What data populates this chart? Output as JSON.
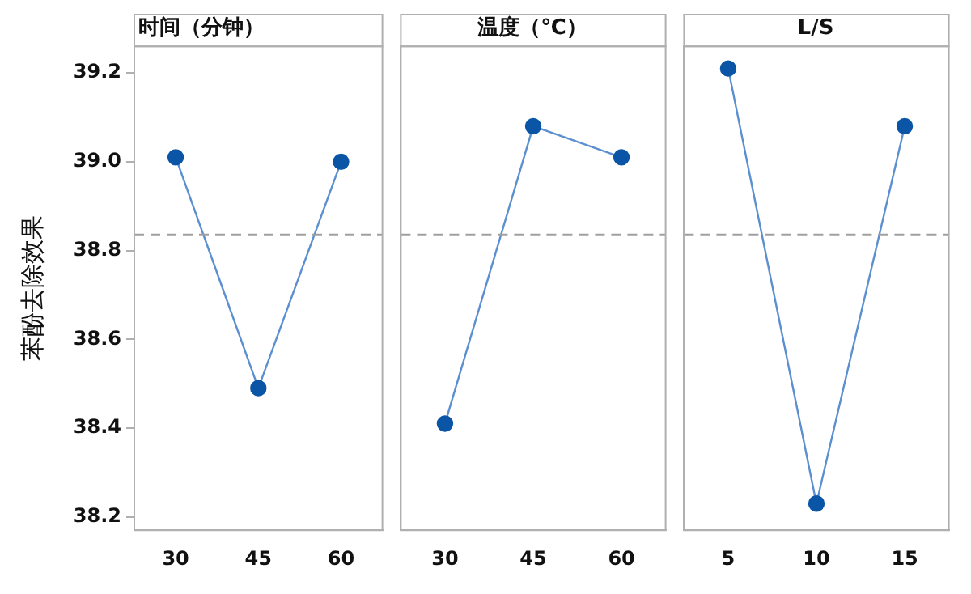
{
  "chart_data": [
    {
      "type": "line",
      "title": "时间（分钟）",
      "ylabel": "苯酚去除效果",
      "categories": [
        "30",
        "45",
        "60"
      ],
      "series": [
        {
          "color": "#0b55a6",
          "values": [
            39.01,
            38.49,
            39.0
          ]
        }
      ],
      "ylim": [
        38.17,
        39.26
      ],
      "yticks": [
        38.2,
        38.4,
        38.6,
        38.8,
        {
          "value": 39.0,
          "label": "39.0"
        },
        39.2
      ],
      "marker": "circle",
      "line_style": "solid",
      "grid": false,
      "legend": false,
      "ref_lines": [
        {
          "axis": "y",
          "value": 38.835,
          "color": "#a0a0a0",
          "line_style": "dashed"
        }
      ]
    },
    {
      "type": "line",
      "title": "温度（℃）",
      "categories": [
        "30",
        "45",
        "60"
      ],
      "series": [
        {
          "color": "#0b55a6",
          "values": [
            38.41,
            39.08,
            39.01
          ]
        }
      ],
      "ylim": [
        38.17,
        39.26
      ],
      "tick_labels": "x",
      "marker": "circle",
      "line_style": "solid",
      "grid": false,
      "legend": false,
      "ref_lines": [
        {
          "axis": "y",
          "value": 38.835,
          "color": "#a0a0a0",
          "line_style": "dashed"
        }
      ]
    },
    {
      "type": "line",
      "title": "L/S",
      "categories": [
        "5",
        "10",
        "15"
      ],
      "series": [
        {
          "color": "#0b55a6",
          "values": [
            39.21,
            38.23,
            39.08
          ]
        }
      ],
      "ylim": [
        38.17,
        39.26
      ],
      "tick_labels": "x",
      "marker": "circle",
      "line_style": "solid",
      "grid": false,
      "legend": false,
      "ref_lines": [
        {
          "axis": "y",
          "value": 38.835,
          "color": "#a0a0a0",
          "line_style": "dashed"
        }
      ]
    }
  ]
}
